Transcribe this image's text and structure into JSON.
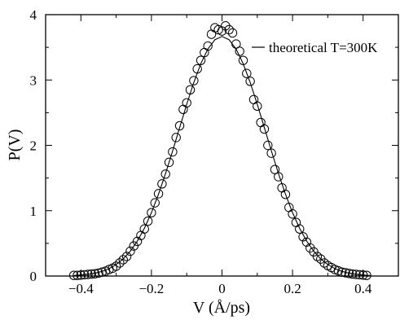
{
  "chart_data": {
    "type": "scatter",
    "xlabel": "V (Å/ps)",
    "ylabel": "P(V)",
    "xlim": [
      -0.5,
      0.5
    ],
    "ylim": [
      0,
      4
    ],
    "x_ticks": [
      -0.4,
      -0.2,
      0,
      0.2,
      0.4
    ],
    "x_tick_labels": [
      "−0.4",
      "−0.2",
      "0",
      "0.2",
      "0.4"
    ],
    "y_ticks": [
      0,
      1,
      2,
      3,
      4
    ],
    "y_tick_labels": [
      "0",
      "1",
      "2",
      "3",
      "4"
    ],
    "grid": false,
    "legend_position": "top-right",
    "legend": [
      {
        "label": "theoretical T=300K",
        "style": "line"
      }
    ],
    "series": [
      {
        "kind": "curve",
        "name": "theoretical T=300K",
        "x": [
          -0.42,
          -0.4,
          -0.38,
          -0.36,
          -0.34,
          -0.32,
          -0.3,
          -0.28,
          -0.26,
          -0.24,
          -0.22,
          -0.2,
          -0.18,
          -0.16,
          -0.14,
          -0.12,
          -0.1,
          -0.08,
          -0.06,
          -0.04,
          -0.02,
          0,
          0.02,
          0.04,
          0.06,
          0.08,
          0.1,
          0.12,
          0.14,
          0.16,
          0.18,
          0.2,
          0.22,
          0.24,
          0.26,
          0.28,
          0.3,
          0.32,
          0.34,
          0.36,
          0.38,
          0.4,
          0.42
        ],
        "y": [
          0.008,
          0.015,
          0.026,
          0.044,
          0.072,
          0.114,
          0.175,
          0.262,
          0.38,
          0.535,
          0.731,
          0.97,
          1.251,
          1.569,
          1.914,
          2.272,
          2.628,
          2.961,
          3.25,
          3.474,
          3.617,
          3.666,
          3.617,
          3.474,
          3.25,
          2.961,
          2.628,
          2.272,
          1.914,
          1.569,
          1.251,
          0.97,
          0.731,
          0.535,
          0.38,
          0.262,
          0.175,
          0.114,
          0.072,
          0.044,
          0.026,
          0.015,
          0.008
        ]
      },
      {
        "kind": "points",
        "marker": "open-circle",
        "x": [
          -0.42,
          -0.41,
          -0.4,
          -0.39,
          -0.38,
          -0.37,
          -0.36,
          -0.35,
          -0.34,
          -0.33,
          -0.32,
          -0.31,
          -0.3,
          -0.29,
          -0.28,
          -0.27,
          -0.26,
          -0.25,
          -0.24,
          -0.23,
          -0.22,
          -0.21,
          -0.2,
          -0.19,
          -0.18,
          -0.17,
          -0.16,
          -0.15,
          -0.14,
          -0.13,
          -0.12,
          -0.11,
          -0.1,
          -0.09,
          -0.08,
          -0.07,
          -0.06,
          -0.05,
          -0.04,
          -0.03,
          -0.02,
          -0.01,
          0,
          0.01,
          0.02,
          0.03,
          0.04,
          0.05,
          0.06,
          0.07,
          0.08,
          0.09,
          0.1,
          0.11,
          0.12,
          0.13,
          0.14,
          0.15,
          0.16,
          0.17,
          0.18,
          0.19,
          0.2,
          0.21,
          0.22,
          0.23,
          0.24,
          0.25,
          0.26,
          0.27,
          0.28,
          0.29,
          0.3,
          0.31,
          0.32,
          0.33,
          0.34,
          0.35,
          0.36,
          0.37,
          0.38,
          0.39,
          0.4,
          0.41
        ],
        "y": [
          0.01,
          0.01,
          0.015,
          0.02,
          0.025,
          0.03,
          0.035,
          0.045,
          0.06,
          0.075,
          0.1,
          0.12,
          0.15,
          0.2,
          0.25,
          0.3,
          0.38,
          0.46,
          0.53,
          0.62,
          0.72,
          0.84,
          0.97,
          1.12,
          1.26,
          1.41,
          1.56,
          1.74,
          1.9,
          2.12,
          2.3,
          2.55,
          2.65,
          2.85,
          2.99,
          3.17,
          3.3,
          3.42,
          3.52,
          3.7,
          3.8,
          3.77,
          3.75,
          3.83,
          3.77,
          3.72,
          3.55,
          3.44,
          3.3,
          3.1,
          2.98,
          2.7,
          2.6,
          2.35,
          2.25,
          2.0,
          1.88,
          1.63,
          1.52,
          1.35,
          1.25,
          1.05,
          0.95,
          0.82,
          0.72,
          0.6,
          0.52,
          0.43,
          0.37,
          0.3,
          0.26,
          0.2,
          0.16,
          0.13,
          0.1,
          0.08,
          0.06,
          0.05,
          0.04,
          0.03,
          0.025,
          0.02,
          0.015,
          0.01
        ]
      }
    ]
  }
}
